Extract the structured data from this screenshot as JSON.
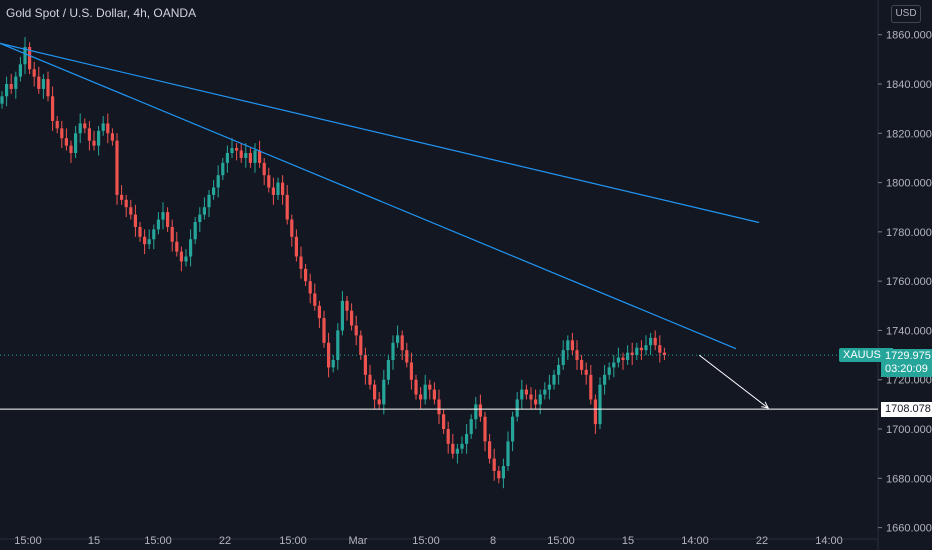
{
  "header": {
    "title": "Gold Spot / U.S. Dollar, 4h, OANDA",
    "currency": "USD"
  },
  "badges": {
    "symbol": "XAUUSD",
    "last_price": "1729.975",
    "countdown": "03:20:09",
    "level_label": "1708.078"
  },
  "colors": {
    "background": "#131722",
    "up": "#26a69a",
    "down": "#ef5350",
    "trendline": "#2196f3",
    "level": "#ffffff",
    "grid": "#1e222d"
  },
  "chart_data": {
    "type": "candlestick",
    "title": "Gold Spot / U.S. Dollar, 4h, OANDA",
    "y_ticks": [
      1660,
      1680,
      1700,
      1720,
      1740,
      1760,
      1780,
      1800,
      1820,
      1840,
      1860
    ],
    "ylim": [
      1657,
      1868
    ],
    "x_ticks": [
      "15:00",
      "15",
      "15:00",
      "22",
      "15:00",
      "Mar",
      "15:00",
      "8",
      "15:00",
      "15",
      "14:00",
      "22",
      "14:00"
    ],
    "horizontal_level": 1708.078,
    "last_price": 1729.975,
    "grid": false,
    "closes": [
      1835,
      1840,
      1838,
      1843,
      1848,
      1855,
      1846,
      1843,
      1838,
      1842,
      1835,
      1825,
      1822,
      1818,
      1815,
      1812,
      1820,
      1824,
      1822,
      1817,
      1815,
      1821,
      1824,
      1820,
      1817,
      1795,
      1793,
      1790,
      1787,
      1782,
      1778,
      1775,
      1777,
      1781,
      1785,
      1788,
      1782,
      1776,
      1772,
      1768,
      1770,
      1777,
      1784,
      1787,
      1790,
      1795,
      1798,
      1803,
      1808,
      1812,
      1814,
      1813,
      1810,
      1812,
      1808,
      1813,
      1808,
      1803,
      1798,
      1795,
      1800,
      1795,
      1785,
      1778,
      1770,
      1765,
      1760,
      1755,
      1750,
      1745,
      1735,
      1725,
      1728,
      1740,
      1752,
      1748,
      1742,
      1738,
      1730,
      1722,
      1718,
      1712,
      1710,
      1720,
      1728,
      1735,
      1738,
      1732,
      1727,
      1720,
      1714,
      1712,
      1718,
      1716,
      1712,
      1706,
      1700,
      1694,
      1690,
      1692,
      1694,
      1698,
      1704,
      1710,
      1705,
      1695,
      1688,
      1683,
      1680,
      1685,
      1695,
      1705,
      1712,
      1716,
      1714,
      1712,
      1710,
      1714,
      1716,
      1718,
      1722,
      1726,
      1732,
      1736,
      1732,
      1728,
      1724,
      1722,
      1712,
      1702,
      1718,
      1722,
      1725,
      1727,
      1729,
      1728,
      1731,
      1730,
      1733,
      1732,
      1734,
      1737,
      1734,
      1731,
      1730
    ],
    "trendlines": [
      {
        "from": [
          0,
          1856.5
        ],
        "to": [
          165,
          1783.8
        ]
      },
      {
        "from": [
          0,
          1856.5
        ],
        "to": [
          160,
          1732.6
        ]
      }
    ],
    "arrow": {
      "from": [
        152,
        1730.0
      ],
      "to": [
        167,
        1708.5
      ]
    }
  }
}
